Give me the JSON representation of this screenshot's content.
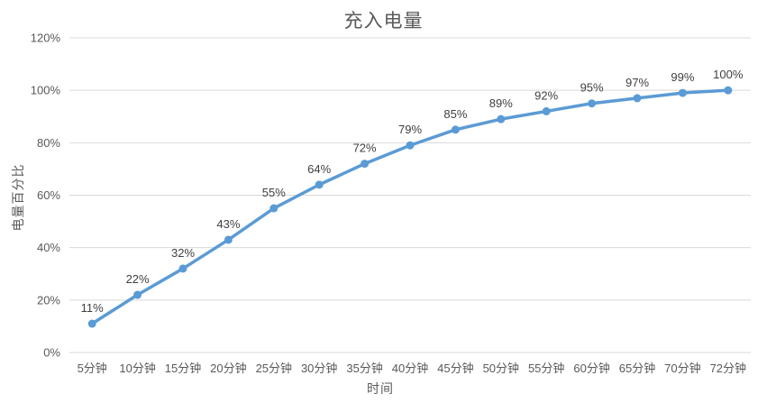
{
  "chart_data": {
    "type": "line",
    "title": "充入电量",
    "xlabel": "时间",
    "ylabel": "电量百分比",
    "categories": [
      "5分钟",
      "10分钟",
      "15分钟",
      "20分钟",
      "25分钟",
      "30分钟",
      "35分钟",
      "40分钟",
      "45分钟",
      "50分钟",
      "55分钟",
      "60分钟",
      "65分钟",
      "70分钟",
      "72分钟"
    ],
    "values": [
      11,
      22,
      32,
      43,
      55,
      64,
      72,
      79,
      85,
      89,
      92,
      95,
      97,
      99,
      100
    ],
    "point_labels": [
      "11%",
      "22%",
      "32%",
      "43%",
      "55%",
      "64%",
      "72%",
      "79%",
      "85%",
      "89%",
      "92%",
      "95%",
      "97%",
      "99%",
      "100%"
    ],
    "yticks": [
      {
        "value": 0,
        "label": "0%"
      },
      {
        "value": 20,
        "label": "20%"
      },
      {
        "value": 40,
        "label": "40%"
      },
      {
        "value": 60,
        "label": "60%"
      },
      {
        "value": 80,
        "label": "80%"
      },
      {
        "value": 100,
        "label": "100%"
      },
      {
        "value": 120,
        "label": "120%"
      }
    ],
    "ylim": [
      0,
      120
    ],
    "grid": true,
    "legend": "none",
    "colors": {
      "line": "#5B9BD5",
      "marker": "#5B9BD5",
      "gridline": "#D9D9D9",
      "title_text": "#595959",
      "tick_text": "#595959",
      "data_label_text": "#404040"
    }
  }
}
